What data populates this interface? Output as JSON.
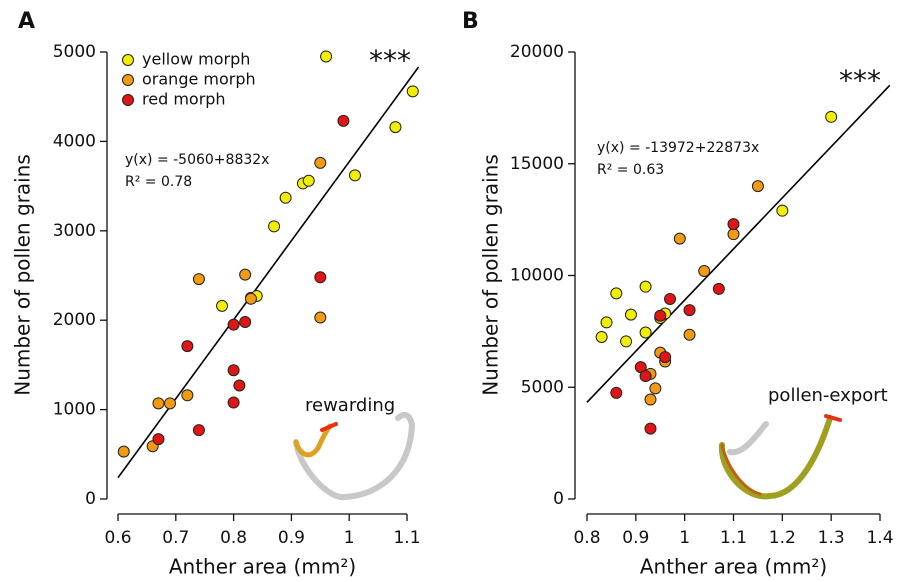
{
  "chart_data": [
    {
      "type": "scatter",
      "panel": "A",
      "xlabel": "Anther area (mm²)",
      "ylabel": "Number of pollen grains",
      "equation": "y(x) = -5060+8832x",
      "r2": "R² = 0.78",
      "significance": "***",
      "annotation": "rewarding",
      "xlim": [
        0.6,
        1.1
      ],
      "ylim": [
        0,
        5000
      ],
      "xticks": [
        0.6,
        0.7,
        0.8,
        0.9,
        1.0,
        1.1
      ],
      "yticks": [
        0,
        1000,
        2000,
        3000,
        4000,
        5000
      ],
      "legend": "upper left",
      "series": [
        {
          "name": "yellow morph",
          "color": "#f2ee00",
          "x": [
            0.78,
            0.83,
            0.84,
            0.87,
            0.89,
            0.92,
            0.93,
            0.96,
            1.01,
            1.08,
            1.11
          ],
          "values": [
            2160,
            2250,
            2270,
            3050,
            3370,
            3530,
            3560,
            4950,
            3620,
            4160,
            4560
          ]
        },
        {
          "name": "orange morph",
          "color": "#f29a12",
          "x": [
            0.61,
            0.66,
            0.67,
            0.69,
            0.72,
            0.74,
            0.82,
            0.83,
            0.95,
            0.95
          ],
          "values": [
            530,
            590,
            1070,
            1070,
            1160,
            2460,
            2510,
            2240,
            2030,
            3760
          ]
        },
        {
          "name": "red morph",
          "color": "#e01515",
          "x": [
            0.67,
            0.72,
            0.74,
            0.8,
            0.8,
            0.8,
            0.81,
            0.82,
            0.95,
            0.99
          ],
          "values": [
            670,
            1710,
            770,
            1080,
            1440,
            1950,
            1270,
            1980,
            2480,
            4230
          ]
        }
      ],
      "fit_line": {
        "color": "#000000",
        "x": [
          0.6,
          1.12
        ],
        "values": [
          239,
          4832
        ]
      }
    },
    {
      "type": "scatter",
      "panel": "B",
      "xlabel": "Anther area (mm²)",
      "ylabel": "Number of pollen grains",
      "equation": "y(x) = -13972+22873x",
      "r2": "R² = 0.63",
      "significance": "***",
      "annotation": "pollen-export",
      "xlim": [
        0.8,
        1.4
      ],
      "ylim": [
        0,
        20000
      ],
      "xticks": [
        0.8,
        0.9,
        1.0,
        1.1,
        1.2,
        1.3,
        1.4
      ],
      "yticks": [
        0,
        5000,
        10000,
        15000,
        20000
      ],
      "legend": false,
      "series": [
        {
          "color": "#f2ee00",
          "x": [
            0.83,
            0.84,
            0.86,
            0.88,
            0.89,
            0.92,
            0.92,
            0.95,
            0.96,
            1.2,
            1.3
          ],
          "values": [
            7250,
            7900,
            9200,
            7050,
            8250,
            7450,
            9500,
            8100,
            8300,
            12900,
            17100
          ]
        },
        {
          "color": "#f29a12",
          "x": [
            0.93,
            0.93,
            0.94,
            0.95,
            0.96,
            0.99,
            1.01,
            1.04,
            1.1,
            1.15
          ],
          "values": [
            5600,
            4450,
            4950,
            6550,
            6150,
            11650,
            7350,
            10200,
            11850,
            14000
          ]
        },
        {
          "color": "#e01515",
          "x": [
            0.86,
            0.91,
            0.92,
            0.93,
            0.95,
            0.96,
            0.97,
            1.01,
            1.07,
            1.1
          ],
          "values": [
            4750,
            5900,
            5500,
            3150,
            8200,
            6350,
            8950,
            8450,
            9400,
            12300
          ]
        }
      ],
      "fit_line": {
        "color": "#000000",
        "x": [
          0.8,
          1.42
        ],
        "values": [
          4326,
          18508
        ]
      }
    }
  ]
}
